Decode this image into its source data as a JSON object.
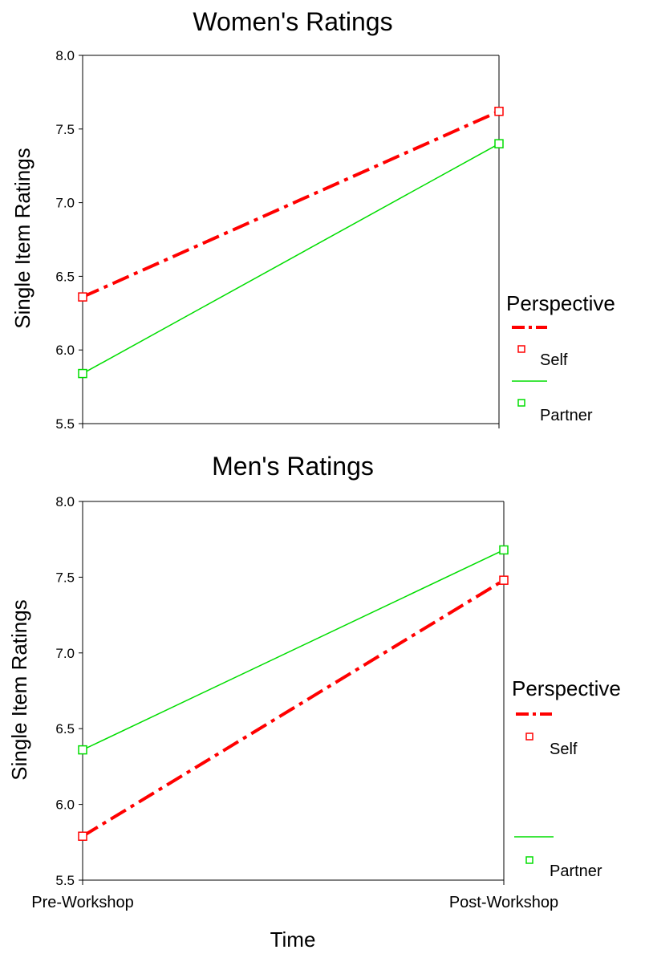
{
  "colors": {
    "self": "#ff0000",
    "partner": "#00dd00",
    "axis": "#000000",
    "background": "#ffffff"
  },
  "shared": {
    "xlabel": "Time",
    "x_categories": [
      "Pre-Workshop",
      "Post-Workshop"
    ]
  },
  "chart_data": [
    {
      "type": "line",
      "title": "Women's Ratings",
      "xlabel": "",
      "ylabel": "Single Item Ratings",
      "categories": [
        "Pre-Workshop",
        "Post-Workshop"
      ],
      "show_x_tick_labels": false,
      "ylim": [
        5.5,
        8.0
      ],
      "yticks": [
        "8.0",
        "7.5",
        "7.0",
        "6.5",
        "6.0",
        "5.5"
      ],
      "grid": false,
      "legend": {
        "title": "Perspective",
        "placement": "right",
        "entries": [
          "Self",
          "Partner"
        ]
      },
      "series": [
        {
          "name": "Self",
          "values": [
            6.36,
            7.62
          ],
          "style": "dash-dot",
          "color": "#ff0000",
          "marker": "open-square"
        },
        {
          "name": "Partner",
          "values": [
            5.84,
            7.4
          ],
          "style": "solid",
          "color": "#00dd00",
          "marker": "open-square"
        }
      ]
    },
    {
      "type": "line",
      "title": "Men's Ratings",
      "xlabel": "Time",
      "ylabel": "Single Item Ratings",
      "categories": [
        "Pre-Workshop",
        "Post-Workshop"
      ],
      "show_x_tick_labels": true,
      "ylim": [
        5.5,
        8.0
      ],
      "yticks": [
        "8.0",
        "7.5",
        "7.0",
        "6.5",
        "6.0",
        "5.5"
      ],
      "grid": false,
      "legend": {
        "title": "Perspective",
        "placement": "right",
        "entries": [
          "Self",
          "Partner"
        ]
      },
      "series": [
        {
          "name": "Self",
          "values": [
            5.79,
            7.48
          ],
          "style": "dash-dot",
          "color": "#ff0000",
          "marker": "open-square"
        },
        {
          "name": "Partner",
          "values": [
            6.36,
            7.68
          ],
          "style": "solid",
          "color": "#00dd00",
          "marker": "open-square"
        }
      ]
    }
  ]
}
